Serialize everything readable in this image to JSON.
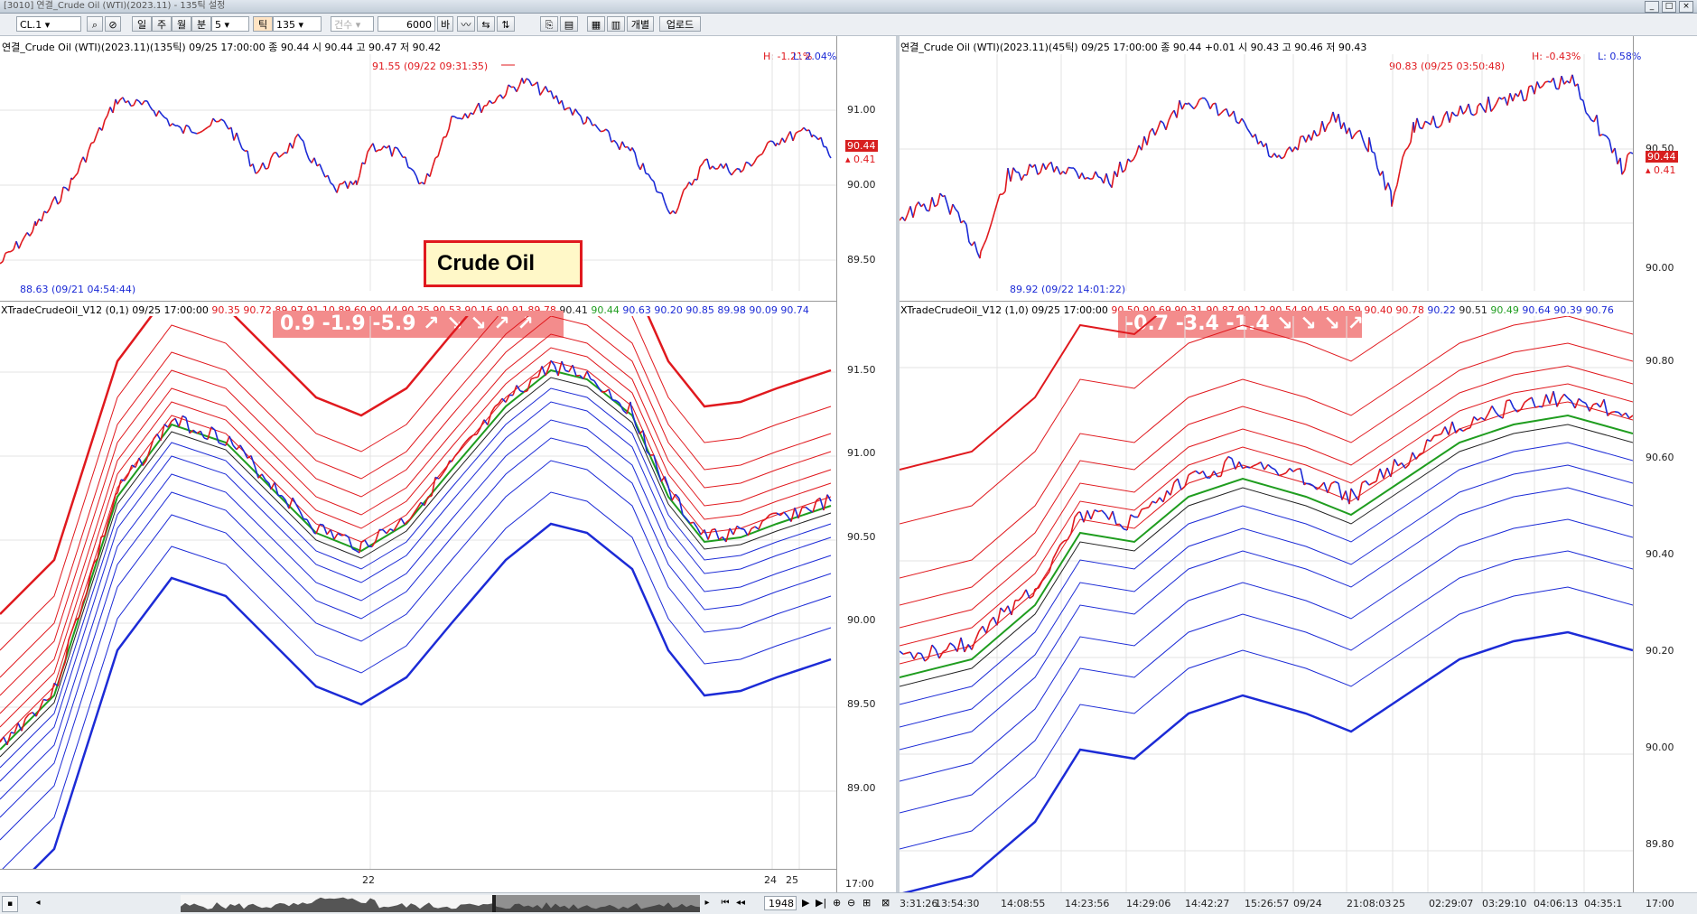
{
  "window": {
    "title": "[3010] 연결_Crude Oil (WTI)(2023.11) - 135틱 설정"
  },
  "toolbar": {
    "symbol": "CL.1",
    "period_day": "일",
    "period_week": "주",
    "period_month": "월",
    "period_min": "분",
    "min_value": "5",
    "tick_label": "틱",
    "tick_value": "135",
    "count_label": "건수",
    "count_value": "6000",
    "bar_label": "바",
    "individual_label": "개별",
    "upload_label": "업로드"
  },
  "left_price": {
    "info": "연결_Crude Oil (WTI)(2023.11)(135틱) 09/25 17:00:00  종 90.44  시 90.44 고 90.47 저 90.42",
    "high_pct": "H: -1.21%",
    "low_pct": "L: 2.04%",
    "high_mark": "91.55 (09/22 09:31:35)",
    "low_mark": "88.63 (09/21 04:54:44)",
    "last_price": "90.44",
    "change": "0.41",
    "yaxis": [
      "91.00",
      "90.50",
      "90.00",
      "89.50"
    ]
  },
  "left_indicator": {
    "title": "XTradeCrudeOil_V12  (0,1) 09/25 17:00:00",
    "values": [
      {
        "v": "90.35",
        "c": "red"
      },
      {
        "v": "90.72",
        "c": "red"
      },
      {
        "v": "89.97",
        "c": "red"
      },
      {
        "v": "91.10",
        "c": "red"
      },
      {
        "v": "89.60",
        "c": "red"
      },
      {
        "v": "90.44",
        "c": "red"
      },
      {
        "v": "90.25",
        "c": "red"
      },
      {
        "v": "90.53",
        "c": "red"
      },
      {
        "v": "90.16",
        "c": "red"
      },
      {
        "v": "90.91",
        "c": "red"
      },
      {
        "v": "89.78",
        "c": "red"
      },
      {
        "v": "90.41",
        "c": "blk"
      },
      {
        "v": "90.44",
        "c": "green"
      },
      {
        "v": "90.63",
        "c": "blue"
      },
      {
        "v": "90.20",
        "c": "blue"
      },
      {
        "v": "90.85",
        "c": "blue"
      },
      {
        "v": "89.98",
        "c": "blue"
      },
      {
        "v": "90.09",
        "c": "blue"
      },
      {
        "v": "90.74",
        "c": "blue"
      }
    ],
    "stamp": "0.9   -1.9   -5.9   ↗  ↘  ↘   ↗ ↗",
    "yaxis": [
      "91.50",
      "91.00",
      "90.50",
      "90.00",
      "89.50",
      "89.00"
    ],
    "xaxis": [
      "22",
      "24",
      "25",
      "17:00"
    ]
  },
  "right_price": {
    "info": "연결_Crude Oil (WTI)(2023.11)(45틱) 09/25 17:00:00  종 90.44 +0.01  시 90.43 고 90.46 저 90.43",
    "high_pct": "H: -0.43%",
    "low_pct": "L: 0.58%",
    "high_mark": "90.83 (09/25 03:50:48)",
    "low_mark": "89.92 (09/22 14:01:22)",
    "last_price": "90.44",
    "change": "0.41",
    "yaxis": [
      "90.50",
      "90.00"
    ]
  },
  "right_indicator": {
    "title": "XTradeCrudeOil_V12  (1,0) 09/25 17:00:00",
    "values": [
      {
        "v": "90.50",
        "c": "red"
      },
      {
        "v": "90.69",
        "c": "red"
      },
      {
        "v": "90.31",
        "c": "red"
      },
      {
        "v": "90.87",
        "c": "red"
      },
      {
        "v": "90.12",
        "c": "red"
      },
      {
        "v": "90.54",
        "c": "red"
      },
      {
        "v": "90.45",
        "c": "red"
      },
      {
        "v": "90.59",
        "c": "red"
      },
      {
        "v": "90.40",
        "c": "red"
      },
      {
        "v": "90.78",
        "c": "red"
      },
      {
        "v": "90.22",
        "c": "blue"
      },
      {
        "v": "90.51",
        "c": "blk"
      },
      {
        "v": "90.49",
        "c": "green"
      },
      {
        "v": "90.64",
        "c": "blue"
      },
      {
        "v": "90.39",
        "c": "blue"
      },
      {
        "v": "90.76",
        "c": "blue"
      }
    ],
    "stamp": "-0.7   -3.4   -1.4   ↘  ↘  ↘   ↗ ↗",
    "yaxis": [
      "90.80",
      "90.60",
      "90.40",
      "90.20",
      "90.00",
      "89.80"
    ],
    "xaxis": [
      "3:31:26",
      "13:54:30",
      "14:08:55",
      "14:23:56",
      "14:29:06",
      "14:42:27",
      "15:26:57",
      "09/24",
      "21:08:03",
      "25",
      "02:29:07",
      "03:29:10",
      "04:06:13",
      "04:35:1",
      "17:00"
    ]
  },
  "label_box": {
    "text": "Crude Oil"
  },
  "scroll": {
    "count": "1948"
  },
  "colors": {
    "up": "#e0191e",
    "down": "#1c2bd6",
    "mid": "#1f9d1f",
    "stamp": "#f38c8c"
  }
}
